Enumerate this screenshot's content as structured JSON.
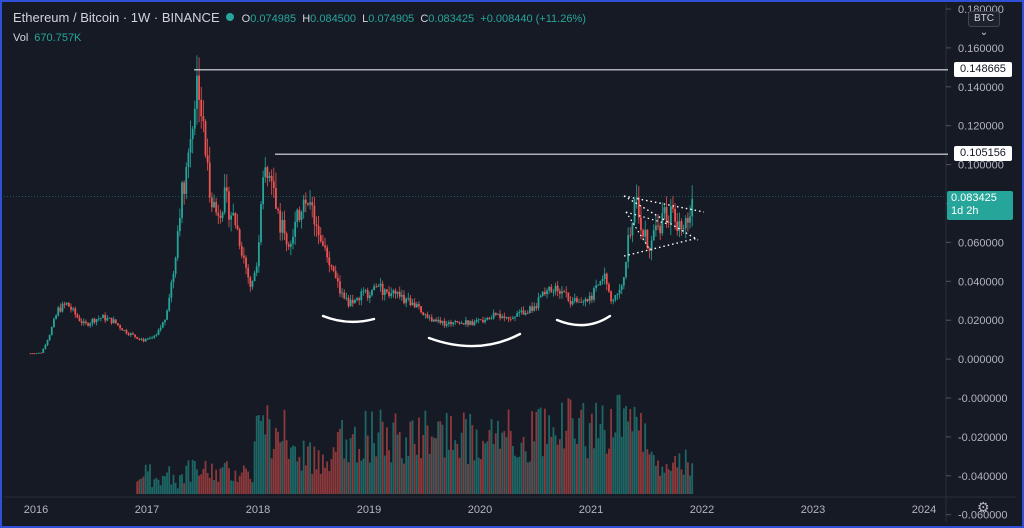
{
  "header": {
    "symbol": "Ethereum / Bitcoin · 1W · BINANCE",
    "o_label": "O",
    "o_value": "0.074985",
    "h_label": "H",
    "h_value": "0.084500",
    "l_label": "L",
    "l_value": "0.074905",
    "c_label": "C",
    "c_value": "0.083425",
    "change": "+0.008440 (+11.26%)"
  },
  "volume": {
    "label": "Vol",
    "value": "670.757K"
  },
  "currency_button": "BTC",
  "colors": {
    "up": "#26a69a",
    "down": "#ef5350",
    "background": "#161a25",
    "border": "#2f4fd8"
  },
  "chart_data": {
    "type": "candlestick",
    "title": "Ethereum / Bitcoin · 1W · BINANCE",
    "x_ticks": [
      "2016",
      "2017",
      "2018",
      "2019",
      "2020",
      "2021",
      "2022",
      "2023",
      "2024"
    ],
    "x_tick_years": [
      2016,
      2017,
      2018,
      2019,
      2020,
      2021,
      2022,
      2023,
      2024
    ],
    "y_ticks": [
      "0.180000",
      "0.160000",
      "0.140000",
      "0.120000",
      "0.100000",
      "0.080000",
      "0.060000",
      "0.040000",
      "0.020000",
      "0.000000",
      "-0.000000",
      "-0.020000",
      "-0.040000",
      "-0.060000"
    ],
    "y_tick_values": [
      0.18,
      0.16,
      0.14,
      0.12,
      0.1,
      0.08,
      0.06,
      0.04,
      0.02,
      0.0,
      -0.0,
      -0.02,
      -0.04,
      -0.06
    ],
    "y_range": [
      -0.064,
      0.182
    ],
    "x_range": [
      2015.9,
      2024.6
    ],
    "price_path": [
      [
        2015.95,
        0.0025
      ],
      [
        2016.05,
        0.0028
      ],
      [
        2016.12,
        0.012
      ],
      [
        2016.2,
        0.025
      ],
      [
        2016.28,
        0.028
      ],
      [
        2016.36,
        0.022
      ],
      [
        2016.44,
        0.017
      ],
      [
        2016.52,
        0.02
      ],
      [
        2016.6,
        0.021
      ],
      [
        2016.7,
        0.019
      ],
      [
        2016.8,
        0.014
      ],
      [
        2016.9,
        0.011
      ],
      [
        2016.98,
        0.009
      ],
      [
        2017.08,
        0.011
      ],
      [
        2017.16,
        0.02
      ],
      [
        2017.24,
        0.045
      ],
      [
        2017.3,
        0.08
      ],
      [
        2017.36,
        0.1
      ],
      [
        2017.42,
        0.128
      ],
      [
        2017.46,
        0.148
      ],
      [
        2017.5,
        0.12
      ],
      [
        2017.56,
        0.09
      ],
      [
        2017.62,
        0.075
      ],
      [
        2017.7,
        0.082
      ],
      [
        2017.8,
        0.07
      ],
      [
        2017.88,
        0.05
      ],
      [
        2017.94,
        0.035
      ],
      [
        2018.0,
        0.055
      ],
      [
        2018.06,
        0.098
      ],
      [
        2018.12,
        0.09
      ],
      [
        2018.2,
        0.07
      ],
      [
        2018.28,
        0.058
      ],
      [
        2018.36,
        0.072
      ],
      [
        2018.42,
        0.082
      ],
      [
        2018.5,
        0.075
      ],
      [
        2018.58,
        0.062
      ],
      [
        2018.66,
        0.045
      ],
      [
        2018.74,
        0.034
      ],
      [
        2018.82,
        0.028
      ],
      [
        2018.9,
        0.031
      ],
      [
        2019.0,
        0.034
      ],
      [
        2019.1,
        0.036
      ],
      [
        2019.2,
        0.033
      ],
      [
        2019.3,
        0.031
      ],
      [
        2019.42,
        0.027
      ],
      [
        2019.54,
        0.021
      ],
      [
        2019.66,
        0.018
      ],
      [
        2019.78,
        0.019
      ],
      [
        2019.9,
        0.018
      ],
      [
        2020.02,
        0.02
      ],
      [
        2020.14,
        0.022
      ],
      [
        2020.26,
        0.021
      ],
      [
        2020.38,
        0.024
      ],
      [
        2020.5,
        0.027
      ],
      [
        2020.58,
        0.034
      ],
      [
        2020.66,
        0.036
      ],
      [
        2020.74,
        0.033
      ],
      [
        2020.82,
        0.03
      ],
      [
        2020.9,
        0.027
      ],
      [
        2020.98,
        0.03
      ],
      [
        2021.06,
        0.036
      ],
      [
        2021.12,
        0.042
      ],
      [
        2021.18,
        0.031
      ],
      [
        2021.24,
        0.034
      ],
      [
        2021.3,
        0.045
      ],
      [
        2021.36,
        0.07
      ],
      [
        2021.4,
        0.08
      ],
      [
        2021.46,
        0.065
      ],
      [
        2021.52,
        0.058
      ],
      [
        2021.58,
        0.063
      ],
      [
        2021.64,
        0.072
      ],
      [
        2021.7,
        0.075
      ],
      [
        2021.76,
        0.07
      ],
      [
        2021.82,
        0.064
      ],
      [
        2021.86,
        0.072
      ],
      [
        2021.9,
        0.077
      ],
      [
        2021.93,
        0.0834
      ]
    ],
    "volume_bars_note": "volume histogram at bottom, green/red",
    "levels": [
      {
        "value": 0.148665,
        "label": "0.148665"
      },
      {
        "value": 0.105156,
        "label": "0.105156"
      }
    ],
    "current": {
      "value": 0.083425,
      "label": "0.083425",
      "countdown": "1d 2h"
    }
  }
}
